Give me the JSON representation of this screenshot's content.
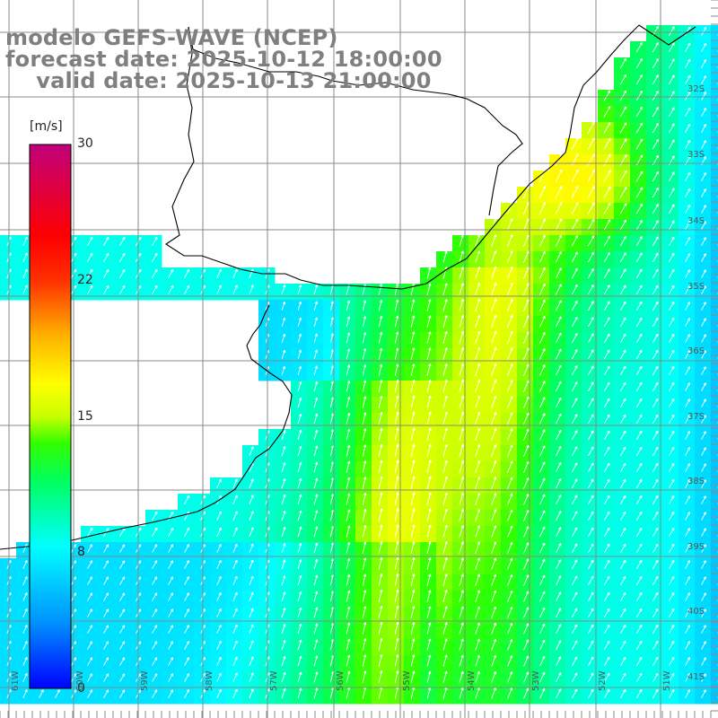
{
  "title": {
    "line1": "modelo GEFS-WAVE (NCEP)",
    "line2": "forecast date: 2025-10-12 18:00:00",
    "line3": "    valid date: 2025-10-13 21:00:00"
  },
  "colorbar": {
    "unit": "[m/s]",
    "min": 0,
    "max": 30,
    "ticks": [
      "30",
      "22",
      "15",
      "8",
      "0"
    ],
    "tick_values": [
      30,
      22,
      15,
      8,
      0
    ]
  },
  "lat_labels": [
    "32S",
    "33S",
    "34S",
    "35S",
    "36S",
    "37S",
    "38S",
    "39S",
    "40S",
    "41S"
  ],
  "lat_values": [
    32,
    33,
    34,
    35,
    36,
    37,
    38,
    39,
    40,
    41
  ],
  "lon_labels": [
    "61W",
    "60W",
    "59W",
    "58W",
    "57W",
    "56W",
    "55W",
    "54W",
    "53W",
    "52W",
    "51W"
  ],
  "lon_values": [
    61,
    60,
    59,
    58,
    57,
    56,
    55,
    54,
    53,
    52,
    51
  ],
  "colors": {
    "land": "#ffffff",
    "coast": "#000000",
    "grid": "#8a8a8a",
    "title": "#7f7f7f"
  }
}
